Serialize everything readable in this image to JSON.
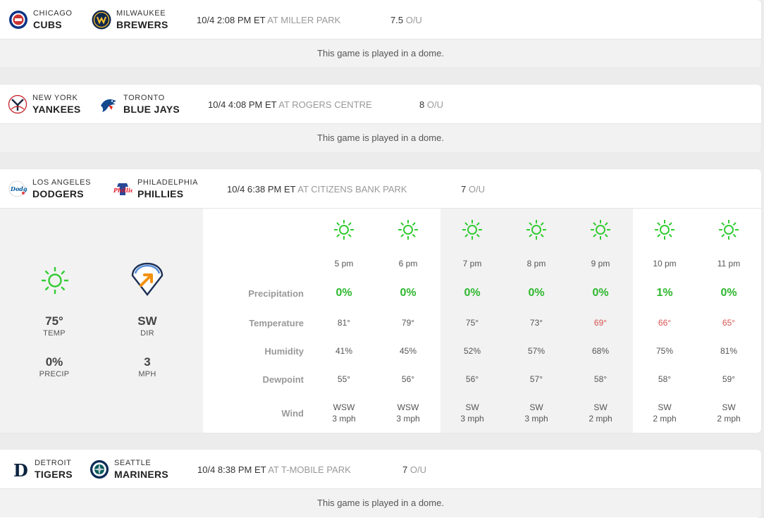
{
  "games": [
    {
      "away": {
        "city": "CHICAGO",
        "nick": "CUBS",
        "logo": "cubs-logo"
      },
      "home": {
        "city": "MILWAUKEE",
        "nick": "BREWERS",
        "logo": "brewers-logo"
      },
      "time": "10/4 2:08 PM ET",
      "venue": "AT MILLER PARK",
      "ou": "7.5",
      "ou_label": "O/U",
      "note": "This game is played in a dome."
    },
    {
      "away": {
        "city": "NEW YORK",
        "nick": "YANKEES",
        "logo": "yankees-logo"
      },
      "home": {
        "city": "TORONTO",
        "nick": "BLUE JAYS",
        "logo": "blue-jays-logo"
      },
      "time": "10/4 4:08 PM ET",
      "venue": "AT ROGERS CENTRE",
      "ou": "8",
      "ou_label": "O/U",
      "note": "This game is played in a dome."
    },
    {
      "away": {
        "city": "LOS ANGELES",
        "nick": "DODGERS",
        "logo": "dodgers-logo"
      },
      "home": {
        "city": "PHILADELPHIA",
        "nick": "PHILLIES",
        "logo": "phillies-logo"
      },
      "time": "10/4 6:38 PM ET",
      "venue": "AT CITIZENS BANK PARK",
      "ou": "7",
      "ou_label": "O/U",
      "weather": {
        "summary": {
          "icon": "sun-icon",
          "temp": "75°",
          "temp_label": "TEMP",
          "precip": "0%",
          "precip_label": "PRECIP",
          "dir": "SW",
          "dir_label": "DIR",
          "speed": "3",
          "speed_label": "MPH",
          "wind_icon": "wind-direction-icon"
        },
        "row_labels": {
          "precipitation": "Precipitation",
          "temperature": "Temperature",
          "humidity": "Humidity",
          "dewpoint": "Dewpoint",
          "wind": "Wind"
        },
        "hours": [
          {
            "hour": "5 pm",
            "precip": "0%",
            "temp": "81°",
            "temp_warn": false,
            "humidity": "41%",
            "dew": "55°",
            "wind_dir": "WSW",
            "wind_speed": "3 mph",
            "game_time": false
          },
          {
            "hour": "6 pm",
            "precip": "0%",
            "temp": "79°",
            "temp_warn": false,
            "humidity": "45%",
            "dew": "56°",
            "wind_dir": "WSW",
            "wind_speed": "3 mph",
            "game_time": false
          },
          {
            "hour": "7 pm",
            "precip": "0%",
            "temp": "75°",
            "temp_warn": false,
            "humidity": "52%",
            "dew": "56°",
            "wind_dir": "SW",
            "wind_speed": "3 mph",
            "game_time": true
          },
          {
            "hour": "8 pm",
            "precip": "0%",
            "temp": "73°",
            "temp_warn": false,
            "humidity": "57%",
            "dew": "57°",
            "wind_dir": "SW",
            "wind_speed": "3 mph",
            "game_time": true
          },
          {
            "hour": "9 pm",
            "precip": "0%",
            "temp": "69°",
            "temp_warn": true,
            "humidity": "68%",
            "dew": "58°",
            "wind_dir": "SW",
            "wind_speed": "2 mph",
            "game_time": true
          },
          {
            "hour": "10 pm",
            "precip": "1%",
            "temp": "66°",
            "temp_warn": true,
            "humidity": "75%",
            "dew": "58°",
            "wind_dir": "SW",
            "wind_speed": "2 mph",
            "game_time": false
          },
          {
            "hour": "11 pm",
            "precip": "0%",
            "temp": "65°",
            "temp_warn": true,
            "humidity": "81%",
            "dew": "59°",
            "wind_dir": "SW",
            "wind_speed": "2 mph",
            "game_time": false
          }
        ]
      }
    },
    {
      "away": {
        "city": "DETROIT",
        "nick": "TIGERS",
        "logo": "tigers-logo"
      },
      "home": {
        "city": "SEATTLE",
        "nick": "MARINERS",
        "logo": "mariners-logo"
      },
      "time": "10/4 8:38 PM ET",
      "venue": "AT T-MOBILE PARK",
      "ou": "7",
      "ou_label": "O/U",
      "note": "This game is played in a dome."
    }
  ],
  "colors": {
    "precip_green": "#2eb82e",
    "sun_green": "#33cc33",
    "temp_warn_red": "#d9534f",
    "muted_gray": "#999999"
  }
}
